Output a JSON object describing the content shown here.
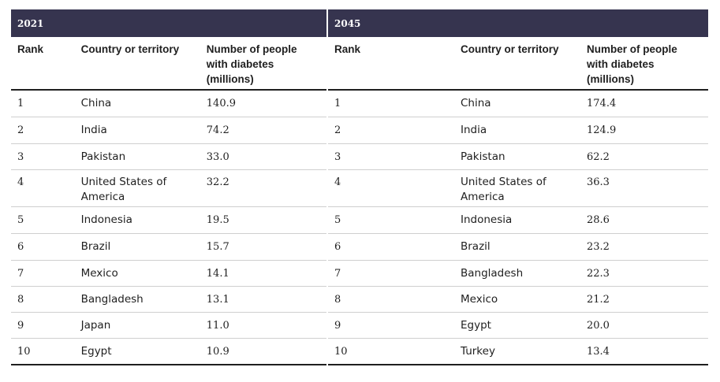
{
  "panels": [
    {
      "year": "2021",
      "headers": {
        "rank": "Rank",
        "country": "Country or territory",
        "value_line1": "Number of people",
        "value_line2": "with diabetes",
        "value_line3": "(millions)"
      },
      "rows": [
        {
          "rank": "1",
          "country": "China",
          "value": "140.9"
        },
        {
          "rank": "2",
          "country": "India",
          "value": "74.2"
        },
        {
          "rank": "3",
          "country": "Pakistan",
          "value": "33.0"
        },
        {
          "rank": "4",
          "country_line1": "United States of",
          "country_line2": "America",
          "value": "32.2"
        },
        {
          "rank": "5",
          "country": "Indonesia",
          "value": "19.5"
        },
        {
          "rank": "6",
          "country": "Brazil",
          "value": "15.7"
        },
        {
          "rank": "7",
          "country": "Mexico",
          "value": "14.1"
        },
        {
          "rank": "8",
          "country": "Bangladesh",
          "value": "13.1"
        },
        {
          "rank": "9",
          "country": "Japan",
          "value": "11.0"
        },
        {
          "rank": "10",
          "country": "Egypt",
          "value": "10.9"
        }
      ]
    },
    {
      "year": "2045",
      "headers": {
        "rank": "Rank",
        "country": "Country or territory",
        "value_line1": "Number of people",
        "value_line2": "with diabetes",
        "value_line3": "(millions)"
      },
      "rows": [
        {
          "rank": "1",
          "country": "China",
          "value": "174.4"
        },
        {
          "rank": "2",
          "country": "India",
          "value": "124.9"
        },
        {
          "rank": "3",
          "country": "Pakistan",
          "value": "62.2"
        },
        {
          "rank": "4",
          "country_line1": "United States of",
          "country_line2": "America",
          "value": "36.3"
        },
        {
          "rank": "5",
          "country": "Indonesia",
          "value": "28.6"
        },
        {
          "rank": "6",
          "country": "Brazil",
          "value": "23.2"
        },
        {
          "rank": "7",
          "country": "Bangladesh",
          "value": "22.3"
        },
        {
          "rank": "8",
          "country": "Mexico",
          "value": "21.2"
        },
        {
          "rank": "9",
          "country": "Egypt",
          "value": "20.0"
        },
        {
          "rank": "10",
          "country": "Turkey",
          "value": "13.4"
        }
      ]
    }
  ],
  "colors": {
    "band": "#36344f",
    "band_text": "#ffffff",
    "rule": "#1f1f1f",
    "row_divider": "#cfcfcf"
  }
}
